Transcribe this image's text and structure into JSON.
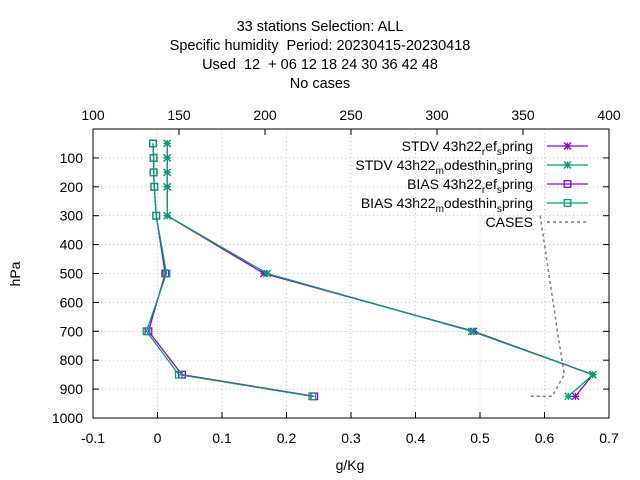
{
  "chart_data": {
    "type": "line",
    "title_lines": [
      "33 stations Selection: ALL",
      "Specific humidity  Period: 20230415-20230418",
      "Used  12  + 06 12 18 24 30 36 42 48",
      "No cases"
    ],
    "xlabel": "g/Kg",
    "ylabel": "hPa",
    "xlim": [
      -0.1,
      0.7
    ],
    "x_ticks": [
      "-0.1",
      "0",
      "0.1",
      "0.2",
      "0.3",
      "0.4",
      "0.5",
      "0.6",
      "0.7"
    ],
    "x2lim": [
      100,
      400
    ],
    "x2_ticks": [
      "100",
      "150",
      "200",
      "250",
      "300",
      "350",
      "400"
    ],
    "ylim": [
      1000,
      0
    ],
    "y_ticks": [
      "100",
      "200",
      "300",
      "400",
      "500",
      "600",
      "700",
      "800",
      "900",
      "1000"
    ],
    "grid": true,
    "legend_position": "top-right",
    "series": [
      {
        "name": "STDV 43h22_ref_spring",
        "label_parts": [
          [
            "STDV 43h22",
            ""
          ],
          [
            "r",
            "sub"
          ],
          [
            "ef",
            ""
          ],
          [
            "s",
            "sub"
          ],
          [
            "pring",
            ""
          ]
        ],
        "color": "#9400d3",
        "marker": "star",
        "dash": "",
        "axis": "x",
        "x": [
          0.015,
          0.015,
          0.015,
          0.015,
          0.015,
          0.165,
          0.49,
          0.675,
          0.648
        ],
        "y": [
          50,
          100,
          150,
          200,
          300,
          500,
          700,
          850,
          925
        ]
      },
      {
        "name": "STDV 43h22_modesthin_spring",
        "label_parts": [
          [
            "STDV 43h22",
            ""
          ],
          [
            "m",
            "sub"
          ],
          [
            "odesthin",
            ""
          ],
          [
            "s",
            "sub"
          ],
          [
            "pring",
            ""
          ]
        ],
        "color": "#009e73",
        "marker": "star",
        "dash": "",
        "axis": "x",
        "x": [
          0.015,
          0.015,
          0.015,
          0.015,
          0.015,
          0.17,
          0.487,
          0.675,
          0.637
        ],
        "y": [
          50,
          100,
          150,
          200,
          300,
          500,
          700,
          850,
          925
        ]
      },
      {
        "name": "BIAS 43h22_ref_spring",
        "label_parts": [
          [
            "BIAS 43h22",
            ""
          ],
          [
            "r",
            "sub"
          ],
          [
            "ef",
            ""
          ],
          [
            "s",
            "sub"
          ],
          [
            "pring",
            ""
          ]
        ],
        "color": "#9400d3",
        "marker": "square",
        "dash": "",
        "axis": "x",
        "x": [
          -0.007,
          -0.006,
          -0.006,
          -0.005,
          -0.002,
          0.012,
          -0.014,
          0.038,
          0.243
        ],
        "y": [
          50,
          100,
          150,
          200,
          300,
          500,
          700,
          850,
          925
        ]
      },
      {
        "name": "BIAS 43h22_modesthin_spring",
        "label_parts": [
          [
            "BIAS 43h22",
            ""
          ],
          [
            "m",
            "sub"
          ],
          [
            "odesthin",
            ""
          ],
          [
            "s",
            "sub"
          ],
          [
            "pring",
            ""
          ]
        ],
        "color": "#009e73",
        "marker": "square",
        "dash": "",
        "axis": "x",
        "x": [
          -0.007,
          -0.006,
          -0.006,
          -0.005,
          -0.002,
          0.014,
          -0.017,
          0.033,
          0.24
        ],
        "y": [
          50,
          100,
          150,
          200,
          300,
          500,
          700,
          850,
          925
        ]
      },
      {
        "name": "CASES",
        "label_parts": [
          [
            "CASES",
            ""
          ]
        ],
        "color": "#808080",
        "marker": "none",
        "dash": "3,3",
        "axis": "x2",
        "x": [
          360,
          365,
          370,
          374,
          367,
          353
        ],
        "y": [
          300,
          500,
          700,
          850,
          925,
          925
        ]
      }
    ]
  }
}
